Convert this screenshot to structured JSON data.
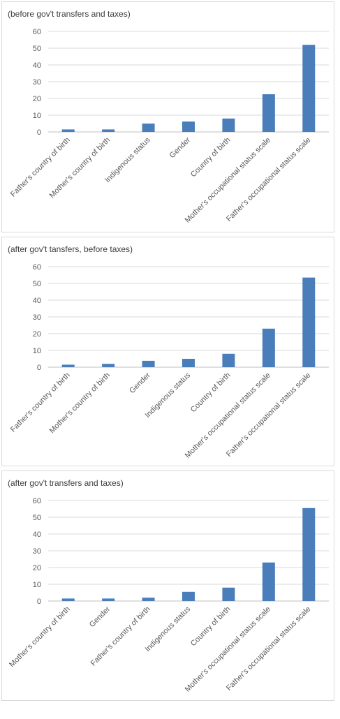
{
  "chart_data": [
    {
      "type": "bar",
      "title": "(before gov't transfers and taxes)",
      "categories": [
        "Father's country of birth",
        "Mother's country of birth",
        "Indigenous status",
        "Gender",
        "Country of birth",
        "Mother's occupational status scale",
        "Father's occupational status scale"
      ],
      "values": [
        1.5,
        1.5,
        5,
        6.2,
        8,
        22.5,
        52
      ],
      "ylim": [
        0,
        60
      ],
      "yticks": [
        "0",
        "10",
        "20",
        "30",
        "40",
        "50",
        "60"
      ],
      "grid": true,
      "bar_color": "#4a7ebb"
    },
    {
      "type": "bar",
      "title": "(after gov't tansfers, before taxes)",
      "categories": [
        "Father's country of birth",
        "Mother's country of birth",
        "Gender",
        "Indigenous status",
        "Country of birth",
        "Mother's occupational status scale",
        "Father's occupational status scale"
      ],
      "values": [
        1.5,
        2,
        3.8,
        5,
        8,
        23,
        53.5
      ],
      "ylim": [
        0,
        60
      ],
      "yticks": [
        "0",
        "10",
        "20",
        "30",
        "40",
        "50",
        "60"
      ],
      "grid": true,
      "bar_color": "#4a7ebb"
    },
    {
      "type": "bar",
      "title": "(after gov't transfers and taxes)",
      "categories": [
        "Mother's country of birth",
        "Gender",
        "Father's country of birth",
        "Indigenous status",
        "Country of birth",
        "Mother's occupational status scale",
        "Father's occupational status scale"
      ],
      "values": [
        1.5,
        1.5,
        2,
        5.5,
        8,
        23,
        55.5
      ],
      "ylim": [
        0,
        60
      ],
      "yticks": [
        "0",
        "10",
        "20",
        "30",
        "40",
        "50",
        "60"
      ],
      "grid": true,
      "bar_color": "#4a7ebb"
    }
  ]
}
